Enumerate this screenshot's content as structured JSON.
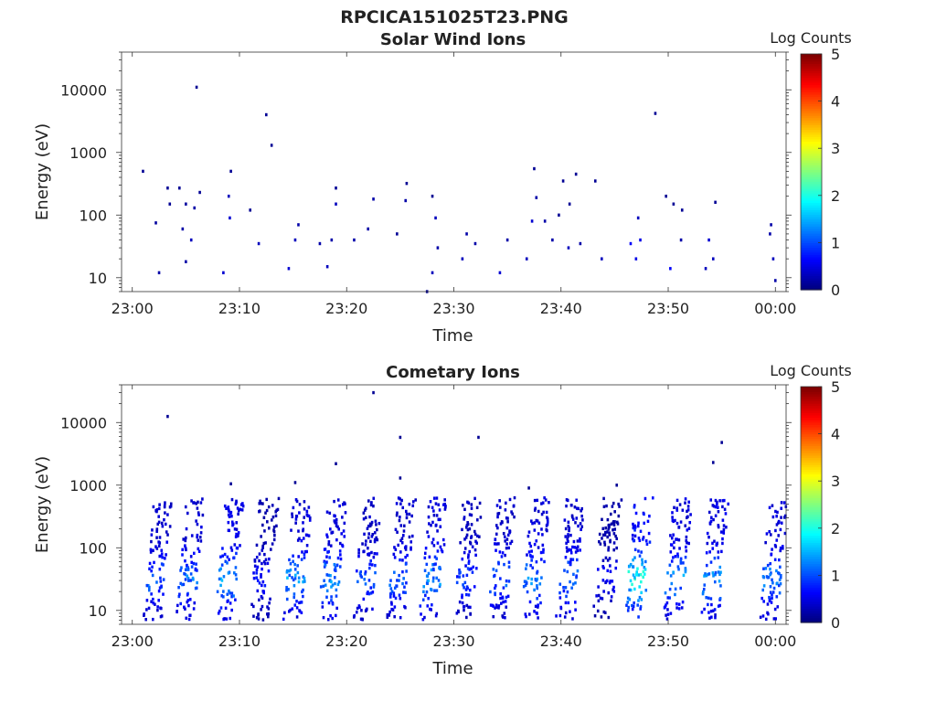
{
  "title": "RPCICA151025T23.PNG",
  "colorbar_colormap": "jet",
  "chart_data": [
    {
      "type": "heatmap",
      "title": "Solar Wind Ions",
      "xlabel": "Time",
      "ylabel": "Energy (eV)",
      "colorbar_label": "Log Counts",
      "colorbar_ticks": [
        "0",
        "1",
        "2",
        "3",
        "4",
        "5"
      ],
      "clim": [
        0,
        5
      ],
      "x_tick_labels": [
        "23:00",
        "23:10",
        "23:20",
        "23:30",
        "23:40",
        "23:50",
        "00:00"
      ],
      "y_tick_labels": [
        "10",
        "100",
        "1000",
        "10000"
      ],
      "y_scale": "log",
      "xlim_minutes": [
        -1,
        61
      ],
      "ylim": [
        6,
        40000
      ],
      "grid": false,
      "data": [
        {
          "t": 1,
          "e": 500,
          "c": 0.1
        },
        {
          "t": 2.2,
          "e": 75,
          "c": 0.15
        },
        {
          "t": 2.5,
          "e": 12,
          "c": 0.2
        },
        {
          "t": 3.3,
          "e": 270,
          "c": 0.1
        },
        {
          "t": 3.5,
          "e": 150,
          "c": 0.1
        },
        {
          "t": 4.4,
          "e": 270,
          "c": 0.1
        },
        {
          "t": 4.7,
          "e": 60,
          "c": 0.2
        },
        {
          "t": 5,
          "e": 150,
          "c": 0.15
        },
        {
          "t": 5,
          "e": 18,
          "c": 0.2
        },
        {
          "t": 5.5,
          "e": 40,
          "c": 0.3
        },
        {
          "t": 5.8,
          "e": 130,
          "c": 0.2
        },
        {
          "t": 6,
          "e": 11000,
          "c": 0.1
        },
        {
          "t": 6.3,
          "e": 230,
          "c": 0.1
        },
        {
          "t": 8.5,
          "e": 12,
          "c": 0.4
        },
        {
          "t": 9,
          "e": 200,
          "c": 0.3
        },
        {
          "t": 9.1,
          "e": 90,
          "c": 0.4
        },
        {
          "t": 9.2,
          "e": 500,
          "c": 0.1
        },
        {
          "t": 11,
          "e": 120,
          "c": 0.1
        },
        {
          "t": 11.8,
          "e": 35,
          "c": 0.3
        },
        {
          "t": 12.5,
          "e": 4000,
          "c": 0.1
        },
        {
          "t": 13,
          "e": 1300,
          "c": 0.1
        },
        {
          "t": 14.6,
          "e": 14,
          "c": 0.4
        },
        {
          "t": 15.2,
          "e": 40,
          "c": 0.3
        },
        {
          "t": 15.5,
          "e": 70,
          "c": 0.2
        },
        {
          "t": 17.5,
          "e": 35,
          "c": 0.2
        },
        {
          "t": 18.2,
          "e": 15,
          "c": 0.3
        },
        {
          "t": 18.6,
          "e": 40,
          "c": 0.2
        },
        {
          "t": 19,
          "e": 150,
          "c": 0.3
        },
        {
          "t": 19,
          "e": 270,
          "c": 0.1
        },
        {
          "t": 20.7,
          "e": 40,
          "c": 0.2
        },
        {
          "t": 22,
          "e": 60,
          "c": 0.2
        },
        {
          "t": 22.5,
          "e": 180,
          "c": 0.2
        },
        {
          "t": 24.7,
          "e": 50,
          "c": 0.1
        },
        {
          "t": 25.5,
          "e": 170,
          "c": 0.2
        },
        {
          "t": 25.6,
          "e": 320,
          "c": 0.1
        },
        {
          "t": 27.5,
          "e": 6,
          "c": 0.1
        },
        {
          "t": 28,
          "e": 12,
          "c": 0.3
        },
        {
          "t": 28.3,
          "e": 90,
          "c": 0.3
        },
        {
          "t": 28.5,
          "e": 30,
          "c": 0.2
        },
        {
          "t": 28,
          "e": 200,
          "c": 0.1
        },
        {
          "t": 30.8,
          "e": 20,
          "c": 0.3
        },
        {
          "t": 31.2,
          "e": 50,
          "c": 0.2
        },
        {
          "t": 32,
          "e": 35,
          "c": 0.2
        },
        {
          "t": 34.3,
          "e": 12,
          "c": 0.4
        },
        {
          "t": 35,
          "e": 40,
          "c": 0.2
        },
        {
          "t": 36.8,
          "e": 20,
          "c": 0.3
        },
        {
          "t": 37.3,
          "e": 80,
          "c": 0.4
        },
        {
          "t": 37.5,
          "e": 550,
          "c": 0.1
        },
        {
          "t": 37.7,
          "e": 190,
          "c": 0.2
        },
        {
          "t": 38.5,
          "e": 80,
          "c": 0.2
        },
        {
          "t": 39.2,
          "e": 40,
          "c": 0.2
        },
        {
          "t": 39.8,
          "e": 100,
          "c": 0.1
        },
        {
          "t": 40.2,
          "e": 350,
          "c": 0.1
        },
        {
          "t": 40.7,
          "e": 30,
          "c": 0.3
        },
        {
          "t": 40.8,
          "e": 150,
          "c": 0.1
        },
        {
          "t": 41.4,
          "e": 450,
          "c": 0.1
        },
        {
          "t": 41.8,
          "e": 35,
          "c": 0.2
        },
        {
          "t": 43.2,
          "e": 350,
          "c": 0.1
        },
        {
          "t": 43.8,
          "e": 20,
          "c": 0.3
        },
        {
          "t": 46.5,
          "e": 35,
          "c": 0.6
        },
        {
          "t": 47,
          "e": 20,
          "c": 0.5
        },
        {
          "t": 47.2,
          "e": 90,
          "c": 0.3
        },
        {
          "t": 47.4,
          "e": 40,
          "c": 0.5
        },
        {
          "t": 48.8,
          "e": 4200,
          "c": 0.1
        },
        {
          "t": 49.8,
          "e": 200,
          "c": 0.1
        },
        {
          "t": 50.2,
          "e": 14,
          "c": 0.6
        },
        {
          "t": 50.5,
          "e": 150,
          "c": 0.1
        },
        {
          "t": 51.3,
          "e": 120,
          "c": 0.1
        },
        {
          "t": 51.2,
          "e": 40,
          "c": 0.2
        },
        {
          "t": 53.5,
          "e": 14,
          "c": 0.3
        },
        {
          "t": 53.8,
          "e": 40,
          "c": 0.4
        },
        {
          "t": 54.2,
          "e": 20,
          "c": 0.3
        },
        {
          "t": 54.4,
          "e": 160,
          "c": 0.1
        },
        {
          "t": 59.5,
          "e": 50,
          "c": 0.2
        },
        {
          "t": 59.6,
          "e": 70,
          "c": 0.2
        },
        {
          "t": 59.8,
          "e": 20,
          "c": 0.3
        },
        {
          "t": 60,
          "e": 9,
          "c": 0.2
        }
      ]
    },
    {
      "type": "heatmap",
      "title": "Cometary Ions",
      "xlabel": "Time",
      "ylabel": "Energy (eV)",
      "colorbar_label": "Log Counts",
      "colorbar_ticks": [
        "0",
        "1",
        "2",
        "3",
        "4",
        "5"
      ],
      "clim": [
        0,
        5
      ],
      "x_tick_labels": [
        "23:00",
        "23:10",
        "23:20",
        "23:30",
        "23:40",
        "23:50",
        "00:00"
      ],
      "y_tick_labels": [
        "10",
        "100",
        "1000",
        "10000"
      ],
      "y_scale": "log",
      "xlim_minutes": [
        -1,
        61
      ],
      "ylim": [
        6,
        40000
      ],
      "grid": false,
      "bursts": [
        {
          "t": 2.3,
          "peak": 1.3
        },
        {
          "t": 5.3,
          "peak": 1.4
        },
        {
          "t": 9.0,
          "peak": 1.7
        },
        {
          "t": 12.2,
          "peak": 0.8
        },
        {
          "t": 15.3,
          "peak": 1.6
        },
        {
          "t": 18.6,
          "peak": 1.6
        },
        {
          "t": 21.8,
          "peak": 1.2
        },
        {
          "t": 25.0,
          "peak": 1.3
        },
        {
          "t": 28.0,
          "peak": 1.6
        },
        {
          "t": 31.2,
          "peak": 1.1
        },
        {
          "t": 34.4,
          "peak": 1.3
        },
        {
          "t": 37.5,
          "peak": 1.5
        },
        {
          "t": 40.8,
          "peak": 1.4
        },
        {
          "t": 44.2,
          "peak": 0.7
        },
        {
          "t": 47.2,
          "peak": 2.3
        },
        {
          "t": 50.8,
          "peak": 1.6
        },
        {
          "t": 54.2,
          "peak": 1.7
        },
        {
          "t": 59.7,
          "peak": 1.5
        }
      ],
      "scattered": [
        {
          "t": 3.3,
          "e": 12500,
          "c": 0.1
        },
        {
          "t": 9.2,
          "e": 1050,
          "c": 0.1
        },
        {
          "t": 15.2,
          "e": 1100,
          "c": 0.1
        },
        {
          "t": 19,
          "e": 2200,
          "c": 0.1
        },
        {
          "t": 22.5,
          "e": 30000,
          "c": 0.1
        },
        {
          "t": 25,
          "e": 5800,
          "c": 0.1
        },
        {
          "t": 25,
          "e": 1300,
          "c": 0.1
        },
        {
          "t": 32.3,
          "e": 5800,
          "c": 0.1
        },
        {
          "t": 45.2,
          "e": 1000,
          "c": 0.1
        },
        {
          "t": 54.2,
          "e": 2300,
          "c": 0.1
        },
        {
          "t": 55,
          "e": 4800,
          "c": 0.1
        },
        {
          "t": 37,
          "e": 900,
          "c": 0.1
        }
      ]
    }
  ]
}
